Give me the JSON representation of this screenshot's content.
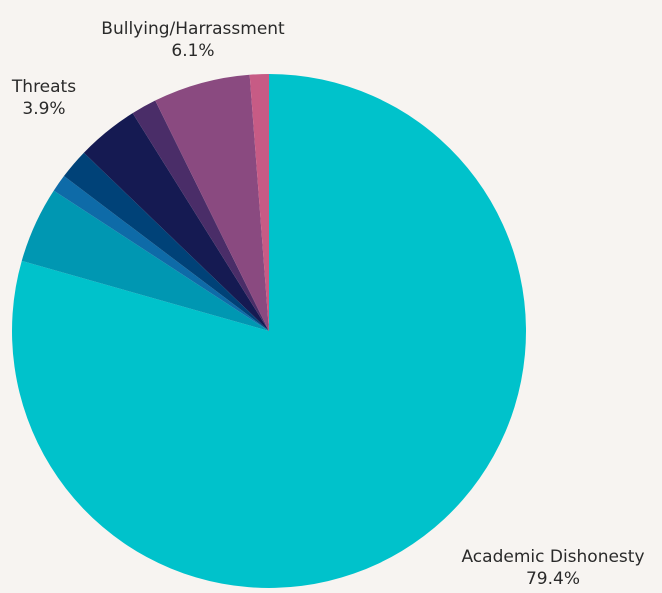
{
  "chart_data": {
    "type": "pie",
    "slices": [
      {
        "label": "Academic Dishonesty",
        "value": 79.4,
        "color": "#00c2cb"
      },
      {
        "value": 4.8,
        "color": "#0097b2"
      },
      {
        "value": 1.1,
        "color": "#0e6ba8"
      },
      {
        "value": 1.9,
        "color": "#004278"
      },
      {
        "label": "Threats",
        "value": 3.9,
        "color": "#151a52"
      },
      {
        "value": 1.6,
        "color": "#4a2d68"
      },
      {
        "label": "Bullying/Harrassment",
        "value": 6.1,
        "color": "#8a4a80"
      },
      {
        "value": 1.2,
        "color": "#c75b85"
      }
    ],
    "labels": {
      "academic": {
        "name": "Academic Dishonesty",
        "pct": "79.4%"
      },
      "threats": {
        "name": "Threats",
        "pct": "3.9%"
      },
      "bullying": {
        "name": "Bullying/Harrassment",
        "pct": "6.1%"
      }
    }
  }
}
